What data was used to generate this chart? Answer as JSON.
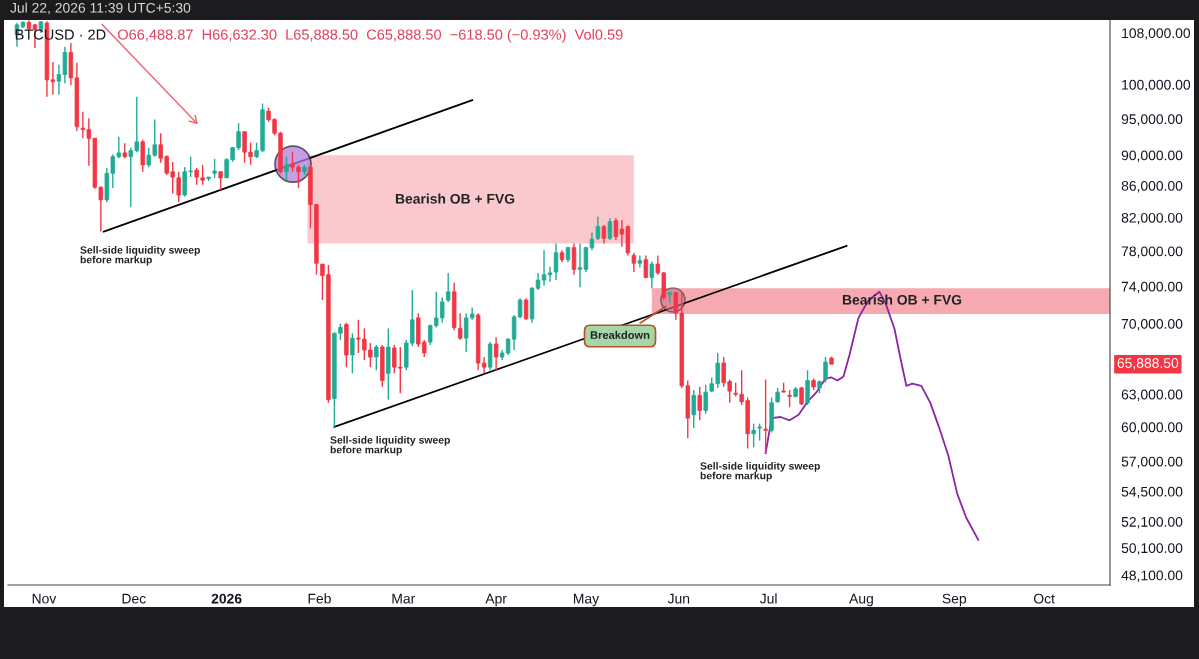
{
  "chart_data": {
    "type": "candlestick",
    "title": "BTCUSD · 2D",
    "subtitle": "O66,488.87  H66,632.30  L65,888.50  C65,888.50  −618.50 (−0.93%)  Vol0.59",
    "log": "y",
    "colors": [
      "#22ab94",
      "#22ab94",
      "#f23645",
      "#f23645",
      "#22ab94",
      "#f23645",
      "#f23645",
      "#22ab94",
      "#22ab94",
      "#f23645",
      "#f23645",
      "#f23645",
      "#f23645",
      "#f23645",
      "#f23645",
      "#22ab94",
      "#22ab94",
      "#22ab94",
      "#f23645",
      "#22ab94",
      "#22ab94",
      "#f23645",
      "#22ab94",
      "#22ab94",
      "#f23645",
      "#f23645",
      "#f23645",
      "#f23645",
      "#22ab94",
      "#22ab94",
      "#f23645",
      "#f23645",
      "#22ab94",
      "#22ab94",
      "#f23645",
      "#22ab94",
      "#22ab94",
      "#22ab94",
      "#f23645",
      "#f23645",
      "#22ab94",
      "#22ab94",
      "#f23645",
      "#f23645",
      "#f23645",
      "#22ab94",
      "#f23645",
      "#f23645",
      "#22ab94",
      "#f23645",
      "#f23645",
      "#f23645",
      "#f23645",
      "#22ab94",
      "#22ab94",
      "#f23645",
      "#22ab94",
      "#f23645",
      "#f23645",
      "#f23645",
      "#22ab94",
      "#f23645",
      "#22ab94",
      "#f23645",
      "#f23645",
      "#22ab94",
      "#22ab94",
      "#f23645",
      "#f23645",
      "#22ab94",
      "#22ab94",
      "#22ab94",
      "#22ab94",
      "#f23645",
      "#f23645",
      "#22ab94",
      "#22ab94",
      "#f23645",
      "#f23645",
      "#22ab94",
      "#f23645",
      "#22ab94",
      "#22ab94",
      "#22ab94",
      "#22ab94",
      "#f23645",
      "#22ab94",
      "#22ab94",
      "#22ab94",
      "#22ab94",
      "#22ab94",
      "#f23645",
      "#22ab94",
      "#f23645",
      "#22ab94",
      "#22ab94",
      "#22ab94",
      "#22ab94",
      "#f23645",
      "#22ab94",
      "#f23645",
      "#f23645",
      "#f23645",
      "#f23645",
      "#22ab94",
      "#f23645",
      "#22ab94",
      "#f23645",
      "#f23645",
      "#22ab94",
      "#f23645",
      "#f23645",
      "#f23645",
      "#22ab94",
      "#f23645",
      "#22ab94",
      "#22ab94",
      "#22ab94",
      "#f23645",
      "#f23645",
      "#f23645",
      "#f23645",
      "#f23645",
      "#22ab94",
      "#22ab94",
      "#f23645",
      "#22ab94",
      "#22ab94",
      "#f23645",
      "#f23645",
      "#22ab94",
      "#f23645",
      "#22ab94",
      "#f23645",
      "#22ab94",
      "#22ab94",
      "#f23645"
    ],
    "xlim": [
      "2025-10-20",
      "2026-10-23"
    ],
    "xticks": [
      {
        "value": "2025-11-01",
        "label": "Nov"
      },
      {
        "value": "2025-12-01",
        "label": "Dec"
      },
      {
        "value": "2026-01-01",
        "label": "2026"
      },
      {
        "value": "2026-02-01",
        "label": "Feb"
      },
      {
        "value": "2026-03-01",
        "label": "Mar"
      },
      {
        "value": "2026-04-01",
        "label": "Apr"
      },
      {
        "value": "2026-05-01",
        "label": "May"
      },
      {
        "value": "2026-06-01",
        "label": "Jun"
      },
      {
        "value": "2026-07-01",
        "label": "Jul"
      },
      {
        "value": "2026-08-01",
        "label": "Aug"
      },
      {
        "value": "2026-09-01",
        "label": "Sep"
      },
      {
        "value": "2026-10-01",
        "label": "Oct"
      }
    ],
    "ylim": [
      47400,
      110100
    ],
    "yticks": [
      {
        "value": 48100,
        "label": "48,100.00"
      },
      {
        "value": 50100,
        "label": "50,100.00"
      },
      {
        "value": 52100,
        "label": "52,100.00"
      },
      {
        "value": 54500,
        "label": "54,500.00"
      },
      {
        "value": 57000,
        "label": "57,000.00"
      },
      {
        "value": 60000,
        "label": "60,000.00"
      },
      {
        "value": 63000,
        "label": "63,000.00"
      },
      {
        "value": 70000,
        "label": "70,000.00"
      },
      {
        "value": 74000,
        "label": "74,000.00"
      },
      {
        "value": 78000,
        "label": "78,000.00"
      },
      {
        "value": 82000,
        "label": "82,000.00"
      },
      {
        "value": 86000,
        "label": "86,000.00"
      },
      {
        "value": 90000,
        "label": "90,000.00"
      },
      {
        "value": 95000,
        "label": "95,000.00"
      },
      {
        "value": 100000,
        "label": "100,000.00"
      },
      {
        "value": 108000,
        "label": "108,000.00"
      }
    ],
    "x": [
      "2025-10-23",
      "2025-10-25",
      "2025-10-27",
      "2025-10-29",
      "2025-10-31",
      "2025-11-02",
      "2025-11-04",
      "2025-11-06",
      "2025-11-08",
      "2025-11-10",
      "2025-11-12",
      "2025-11-14",
      "2025-11-16",
      "2025-11-18",
      "2025-11-20",
      "2025-11-22",
      "2025-11-24",
      "2025-11-26",
      "2025-11-28",
      "2025-11-30",
      "2025-12-02",
      "2025-12-04",
      "2025-12-06",
      "2025-12-08",
      "2025-12-10",
      "2025-12-12",
      "2025-12-14",
      "2025-12-16",
      "2025-12-18",
      "2025-12-20",
      "2025-12-22",
      "2025-12-24",
      "2025-12-26",
      "2025-12-28",
      "2025-12-30",
      "2026-01-01",
      "2026-01-03",
      "2026-01-05",
      "2026-01-07",
      "2026-01-09",
      "2026-01-11",
      "2026-01-13",
      "2026-01-15",
      "2026-01-17",
      "2026-01-19",
      "2026-01-21",
      "2026-01-23",
      "2026-01-25",
      "2026-01-27",
      "2026-01-29",
      "2026-01-31",
      "2026-02-02",
      "2026-02-04",
      "2026-02-06",
      "2026-02-08",
      "2026-02-10",
      "2026-02-12",
      "2026-02-14",
      "2026-02-16",
      "2026-02-18",
      "2026-02-20",
      "2026-02-22",
      "2026-02-24",
      "2026-02-26",
      "2026-02-28",
      "2026-03-02",
      "2026-03-04",
      "2026-03-06",
      "2026-03-08",
      "2026-03-10",
      "2026-03-12",
      "2026-03-14",
      "2026-03-16",
      "2026-03-18",
      "2026-03-20",
      "2026-03-22",
      "2026-03-24",
      "2026-03-26",
      "2026-03-28",
      "2026-03-30",
      "2026-04-01",
      "2026-04-03",
      "2026-04-05",
      "2026-04-07",
      "2026-04-09",
      "2026-04-11",
      "2026-04-13",
      "2026-04-15",
      "2026-04-17",
      "2026-04-19",
      "2026-04-21",
      "2026-04-23",
      "2026-04-25",
      "2026-04-27",
      "2026-04-29",
      "2026-05-01",
      "2026-05-03",
      "2026-05-05",
      "2026-05-07",
      "2026-05-09",
      "2026-05-11",
      "2026-05-13",
      "2026-05-15",
      "2026-05-17",
      "2026-05-19",
      "2026-05-21",
      "2026-05-23",
      "2026-05-25",
      "2026-05-27",
      "2026-05-29",
      "2026-05-31",
      "2026-06-02",
      "2026-06-04",
      "2026-06-06",
      "2026-06-08",
      "2026-06-10",
      "2026-06-12",
      "2026-06-14",
      "2026-06-16",
      "2026-06-18",
      "2026-06-20",
      "2026-06-22",
      "2026-06-24",
      "2026-06-26",
      "2026-06-28",
      "2026-06-30",
      "2026-07-02",
      "2026-07-04",
      "2026-07-06",
      "2026-07-08",
      "2026-07-10",
      "2026-07-12",
      "2026-07-14",
      "2026-07-16",
      "2026-07-18",
      "2026-07-20",
      "2026-07-22"
    ],
    "ohlc": [
      [
        107700,
        109600,
        105800,
        109300
      ],
      [
        109000,
        109900,
        108800,
        109700
      ],
      [
        109700,
        110000,
        108500,
        108700
      ],
      [
        109300,
        109500,
        105600,
        108500
      ],
      [
        108500,
        109900,
        108000,
        109800
      ],
      [
        109600,
        109900,
        98200,
        100700
      ],
      [
        100700,
        103400,
        98500,
        100400
      ],
      [
        100500,
        103000,
        98500,
        101500
      ],
      [
        101500,
        105800,
        100200,
        104900
      ],
      [
        104900,
        106400,
        99900,
        101000
      ],
      [
        101000,
        103300,
        93300,
        93900
      ],
      [
        93700,
        96000,
        92300,
        93500
      ],
      [
        93500,
        95100,
        88600,
        92300
      ],
      [
        92300,
        92300,
        85600,
        85800
      ],
      [
        85800,
        85900,
        80300,
        84200
      ],
      [
        84200,
        88300,
        83900,
        87600
      ],
      [
        87600,
        90100,
        85700,
        89800
      ],
      [
        89800,
        92500,
        89600,
        90300
      ],
      [
        90300,
        91600,
        89600,
        89800
      ],
      [
        89800,
        91000,
        83300,
        90600
      ],
      [
        90600,
        98200,
        90400,
        91800
      ],
      [
        91800,
        92100,
        87800,
        88700
      ],
      [
        88700,
        91000,
        88400,
        90000
      ],
      [
        90000,
        94900,
        89800,
        91400
      ],
      [
        91400,
        93000,
        89000,
        89600
      ],
      [
        89800,
        90000,
        87400,
        87600
      ],
      [
        87800,
        89100,
        85000,
        87100
      ],
      [
        87000,
        87800,
        83900,
        84800
      ],
      [
        84800,
        88400,
        84600,
        87800
      ],
      [
        87800,
        89800,
        87100,
        87900
      ],
      [
        88000,
        88300,
        86100,
        87100
      ],
      [
        87000,
        88700,
        86100,
        86700
      ],
      [
        86900,
        87100,
        86600,
        87100
      ],
      [
        87600,
        89500,
        87000,
        87900
      ],
      [
        87800,
        87800,
        85400,
        87000
      ],
      [
        87000,
        89600,
        87000,
        89400
      ],
      [
        89400,
        91100,
        89100,
        91000
      ],
      [
        91000,
        94400,
        90700,
        93200
      ],
      [
        93200,
        93200,
        89000,
        90400
      ],
      [
        90400,
        91700,
        88700,
        89800
      ],
      [
        89800,
        91700,
        89600,
        90600
      ],
      [
        90600,
        97200,
        90400,
        96300
      ],
      [
        96100,
        96600,
        94600,
        94900
      ],
      [
        94900,
        95100,
        92700,
        93000
      ],
      [
        93000,
        93200,
        87600,
        87800
      ],
      [
        87800,
        89800,
        86700,
        88700
      ],
      [
        88800,
        90400,
        87800,
        88400
      ],
      [
        88400,
        88700,
        85700,
        87800
      ],
      [
        87800,
        88700,
        87400,
        88400
      ],
      [
        88400,
        88700,
        80700,
        83600
      ],
      [
        83600,
        83700,
        75300,
        76600
      ],
      [
        76500,
        76500,
        72500,
        75200
      ],
      [
        75300,
        76400,
        62200,
        62500
      ],
      [
        62600,
        69100,
        60000,
        69000
      ],
      [
        69000,
        70000,
        68300,
        69600
      ],
      [
        69900,
        70100,
        65600,
        66800
      ],
      [
        66800,
        69000,
        65000,
        68500
      ],
      [
        68500,
        70400,
        67000,
        68400
      ],
      [
        68400,
        69500,
        66300,
        67300
      ],
      [
        67300,
        68000,
        65600,
        66600
      ],
      [
        66600,
        67800,
        65300,
        67600
      ],
      [
        67600,
        67800,
        63700,
        64300
      ],
      [
        65000,
        69500,
        62500,
        67600
      ],
      [
        67500,
        67800,
        65000,
        65600
      ],
      [
        65600,
        67600,
        63100,
        65500
      ],
      [
        65600,
        68300,
        65300,
        68000
      ],
      [
        68000,
        73600,
        67700,
        70400
      ],
      [
        70600,
        71100,
        67600,
        67900
      ],
      [
        68100,
        68300,
        66600,
        67000
      ],
      [
        68100,
        69900,
        67800,
        69800
      ],
      [
        69800,
        73400,
        69600,
        70600
      ],
      [
        70600,
        72800,
        70100,
        72300
      ],
      [
        72500,
        75500,
        72300,
        73400
      ],
      [
        73400,
        74400,
        69300,
        69600
      ],
      [
        69500,
        71100,
        68300,
        68500
      ],
      [
        68500,
        71100,
        67100,
        70600
      ],
      [
        70600,
        71700,
        70400,
        71000
      ],
      [
        70900,
        71100,
        65300,
        66000
      ],
      [
        66000,
        66600,
        65000,
        65600
      ],
      [
        65600,
        68100,
        65300,
        67900
      ],
      [
        67900,
        68600,
        65300,
        66600
      ],
      [
        66600,
        67300,
        66300,
        67000
      ],
      [
        67000,
        68500,
        66800,
        68400
      ],
      [
        68400,
        70900,
        67300,
        70700
      ],
      [
        70700,
        72700,
        70600,
        72500
      ],
      [
        72500,
        72700,
        70400,
        70500
      ],
      [
        70500,
        73900,
        70100,
        73800
      ],
      [
        73800,
        75500,
        73600,
        74700
      ],
      [
        74700,
        78100,
        74100,
        75300
      ],
      [
        75300,
        76200,
        74500,
        75500
      ],
      [
        75600,
        78900,
        74700,
        77800
      ],
      [
        77800,
        78100,
        76700,
        77000
      ],
      [
        77000,
        78500,
        76700,
        78400
      ],
      [
        78400,
        78900,
        75300,
        75900
      ],
      [
        75900,
        78900,
        73900,
        76100
      ],
      [
        75900,
        78500,
        75600,
        78400
      ],
      [
        78400,
        80200,
        78100,
        79400
      ],
      [
        79500,
        82100,
        79300,
        80900
      ],
      [
        80900,
        81100,
        78900,
        79500
      ],
      [
        79500,
        81900,
        79300,
        81500
      ],
      [
        81600,
        81900,
        79300,
        79700
      ],
      [
        80600,
        81700,
        78500,
        80000
      ],
      [
        80900,
        81000,
        77500,
        77800
      ],
      [
        77500,
        77800,
        75600,
        76600
      ],
      [
        76600,
        77500,
        76100,
        76900
      ],
      [
        77000,
        77500,
        74900,
        75000
      ],
      [
        75000,
        76800,
        73800,
        76500
      ],
      [
        76500,
        77500,
        75300,
        75500
      ],
      [
        75500,
        75600,
        72500,
        72800
      ],
      [
        73100,
        73400,
        72200,
        73300
      ],
      [
        73300,
        73400,
        70400,
        71100
      ],
      [
        71100,
        73300,
        63600,
        63800
      ],
      [
        63800,
        64300,
        59000,
        60800
      ],
      [
        61100,
        63400,
        59900,
        62900
      ],
      [
        62900,
        63700,
        60600,
        61500
      ],
      [
        61500,
        63900,
        61200,
        63200
      ],
      [
        63300,
        64600,
        63200,
        64000
      ],
      [
        64000,
        67000,
        63600,
        66000
      ],
      [
        66000,
        66600,
        63700,
        64100
      ],
      [
        64200,
        64400,
        62200,
        63300
      ],
      [
        63100,
        64100,
        62800,
        63000
      ],
      [
        63000,
        65300,
        62000,
        62300
      ],
      [
        62400,
        62700,
        58100,
        59400
      ],
      [
        59400,
        60300,
        58200,
        59700
      ],
      [
        59900,
        60300,
        58800,
        60000
      ],
      [
        59800,
        64400,
        57700,
        59700
      ],
      [
        59700,
        62700,
        59500,
        62200
      ],
      [
        62300,
        63600,
        62200,
        63200
      ],
      [
        63300,
        64100,
        63200,
        63200
      ],
      [
        62900,
        63400,
        61800,
        62800
      ],
      [
        62800,
        63700,
        62700,
        63500
      ],
      [
        63600,
        63700,
        62000,
        62100
      ],
      [
        62200,
        65300,
        62000,
        64300
      ],
      [
        64300,
        64500,
        63400,
        63700
      ],
      [
        63600,
        64300,
        63100,
        64200
      ],
      [
        64400,
        66600,
        64100,
        66100
      ],
      [
        66488.87,
        66632.3,
        65888.5,
        65888.5
      ]
    ],
    "series": [
      {
        "type": "area",
        "color": "#f9c9ce",
        "x": [
          "2026-01-28",
          "2026-05-17",
          "2026-05-17",
          "2026-01-28"
        ],
        "values": [
          90000,
          90000,
          78900,
          78900
        ]
      },
      {
        "type": "area",
        "color": "#f7a9b1",
        "x": [
          "2026-05-23",
          "2026-10-23",
          "2026-10-23",
          "2026-05-23"
        ],
        "values": [
          73800,
          73800,
          71000,
          71000
        ]
      },
      {
        "type": "line",
        "color": "#000000",
        "x": [
          "2025-11-21",
          "2026-03-24"
        ],
        "values": [
          80300,
          97700
        ]
      },
      {
        "type": "line",
        "color": "#000000",
        "x": [
          "2026-02-06",
          "2026-07-27"
        ],
        "values": [
          60000,
          78600
        ]
      },
      {
        "type": "line",
        "color": "#8e24aa",
        "x": [
          "2026-06-30",
          "2026-07-02",
          "2026-07-05",
          "2026-07-08",
          "2026-07-11",
          "2026-07-14",
          "2026-07-17",
          "2026-07-20",
          "2026-07-22",
          "2026-07-24",
          "2026-07-26",
          "2026-07-28",
          "2026-07-31",
          "2026-08-03",
          "2026-08-05",
          "2026-08-07",
          "2026-08-09",
          "2026-08-12",
          "2026-08-14",
          "2026-08-16",
          "2026-08-18",
          "2026-08-21",
          "2026-08-24",
          "2026-08-27",
          "2026-08-30",
          "2026-09-02",
          "2026-09-05",
          "2026-09-09"
        ],
        "values": [
          57700,
          60800,
          60900,
          60600,
          61100,
          62300,
          63200,
          64500,
          64600,
          64300,
          64700,
          66800,
          70600,
          72300,
          72900,
          73400,
          72200,
          69500,
          66500,
          63800,
          64000,
          63800,
          62200,
          59900,
          57500,
          54300,
          52400,
          50700
        ]
      }
    ],
    "annotations": [
      "Jul 22, 2026 11:39 UTC+5:30",
      "Bearish OB + FVG",
      "Bearish OB + FVG",
      "Sell-side liquidity sweep\nbefore markup",
      "Sell-side liquidity sweep\nbefore markup",
      "Sell-side liquidity sweep\nbefore markup",
      "Breakdown",
      "65,888.50"
    ]
  }
}
